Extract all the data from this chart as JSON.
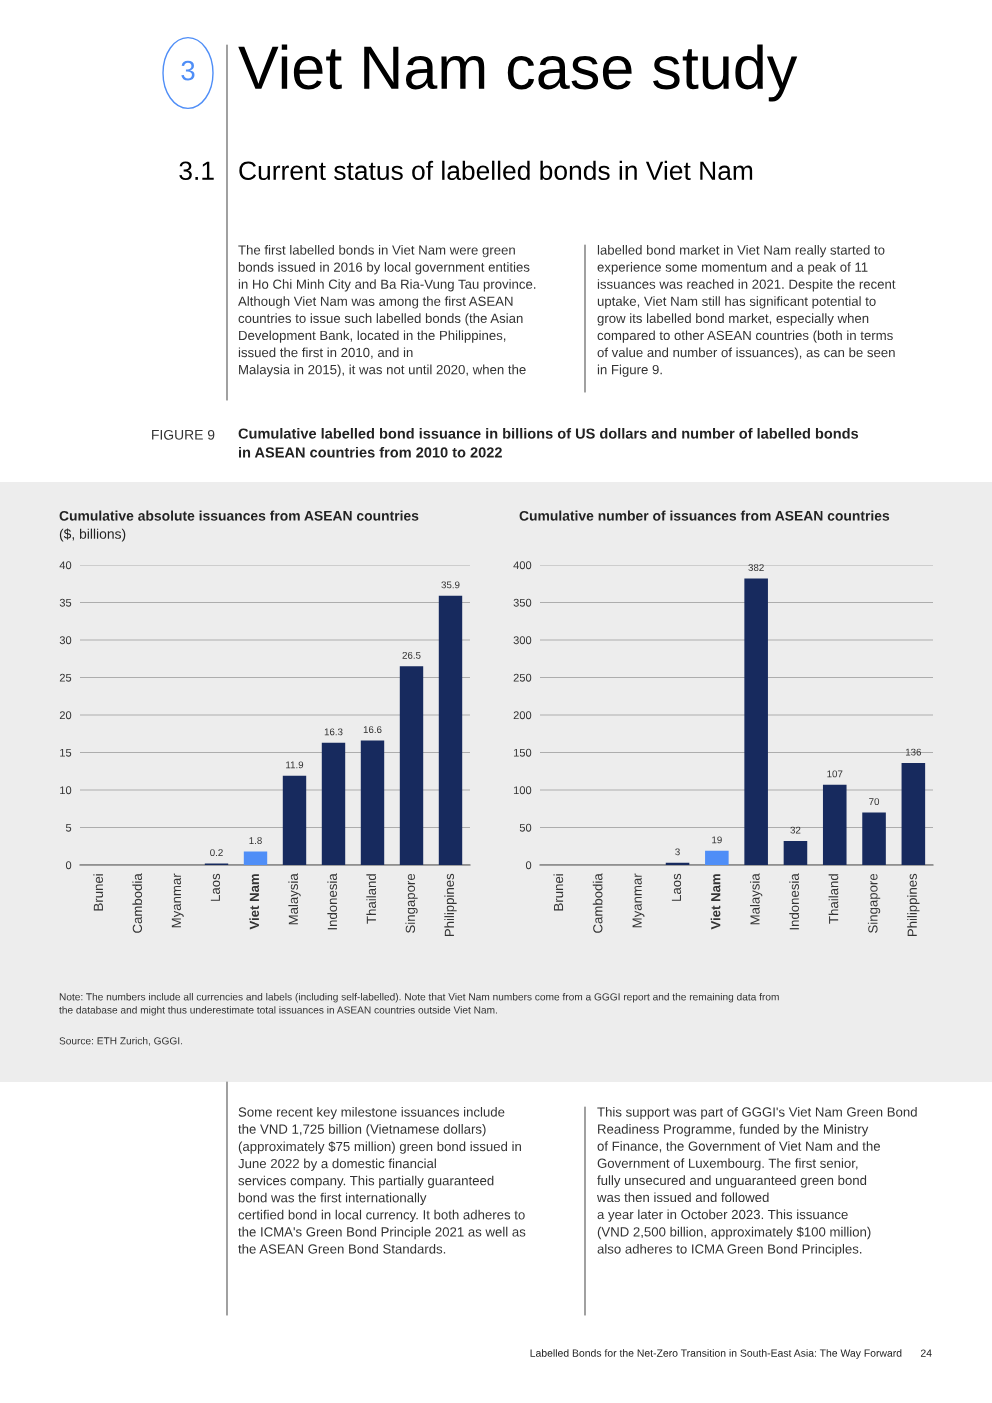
{
  "chart_data": [
    {
      "type": "other",
      "annotations": [
        "3",
        "Viet Nam case study",
        "3.1",
        "Current status of labelled bonds in Viet Nam",
        "The first labelled bonds in Viet Nam were green\nbonds issued in 2016 by local government entities\nin Ho Chi Minh City and Ba Ria-Vung Tau province.\nAlthough Viet Nam was among the first ASEAN\ncountries to issue such labelled bonds (the Asian\nDevelopment Bank, located in the Philippines,\nissued the first in 2010, and in\nMalaysia in 2015), it was not until 2020, when the",
        "labelled bond market in Viet Nam really started to\nexperience some momentum and a peak of 11\nissuances was reached in 2021. Despite the recent\nuptake, Viet Nam still has significant potential to\ngrow its labelled bond market, especially when\ncompared to other ASEAN countries (both in terms\nof value and number of issuances), as can be seen\nin Figure 9.",
        "FIGURE 9",
        "Cumulative labelled bond issuance in billions of US dollars and number of labelled bonds\nin ASEAN countries from 2010 to 2022",
        "Note: The numbers include all currencies and labels (including self-labelled). Note that Viet Nam numbers come from a GGGI report and the remaining data from\nthe database and might thus underestimate total issuances in ASEAN countries outside Viet Nam.",
        "Source: ETH Zurich, GGGI.",
        "Some recent key milestone issuances include\nthe VND 1,725 billion (Vietnamese dollars)\n(approximately $75 million) green bond issued in\nJune 2022 by a domestic financial\nservices company. This partially guaranteed\nbond was the first internationally\ncertified bond in local currency. It both adheres to\nthe ICMA's Green Bond Principle 2021 as well as\nthe ASEAN Green Bond Standards.",
        "This support was part of GGGI's Viet Nam Green Bond\nReadiness Programme, funded by the Ministry\nof Finance, the Government of Viet Nam and the\nGovernment of Luxembourg. The first senior,\nfully unsecured and unguaranteed green bond\nwas then issued and followed\na year later in October 2023. This issuance\n(VND 2,500 billion, approximately $100 million)\nalso adheres to ICMA Green Bond Principles.",
        "Labelled Bonds for the Net-Zero Transition in South-East Asia: The Way Forward",
        "24"
      ]
    },
    {
      "type": "bar",
      "title": "Cumulative absolute issuances from ASEAN countries",
      "subtitle": "($, billions)",
      "categories": [
        "Brunei",
        "Cambodia",
        "Myanmar",
        "Laos",
        "Viet Nam",
        "Malaysia",
        "Indonesia",
        "Thailand",
        "Singapore",
        "Philippines"
      ],
      "values": [
        0,
        0,
        0,
        0.2,
        1.8,
        11.9,
        16.3,
        16.6,
        26.5,
        35.9
      ],
      "value_labels": [
        null,
        null,
        null,
        "0.2",
        "1.8",
        "11.9",
        "16.3",
        "16.6",
        "26.5",
        "35.9"
      ],
      "colors": [
        "#172a5e",
        "#172a5e",
        "#172a5e",
        "#172a5e",
        "#4f8ef7",
        "#172a5e",
        "#172a5e",
        "#172a5e",
        "#172a5e",
        "#172a5e"
      ],
      "ylim": [
        0,
        40
      ],
      "yticks": [
        0,
        5,
        10,
        15,
        20,
        25,
        30,
        35,
        40
      ],
      "grid": "y"
    },
    {
      "type": "bar",
      "title": "Cumulative number of issuances from ASEAN countries",
      "categories": [
        "Brunei",
        "Cambodia",
        "Myanmar",
        "Laos",
        "Viet Nam",
        "Malaysia",
        "Indonesia",
        "Thailand",
        "Singapore",
        "Philippines"
      ],
      "values": [
        0,
        0,
        0,
        3,
        19,
        382,
        32,
        107,
        70,
        136
      ],
      "value_labels": [
        null,
        null,
        null,
        "3",
        "19",
        "382",
        "32",
        "107",
        "70",
        "136"
      ],
      "colors": [
        "#172a5e",
        "#172a5e",
        "#172a5e",
        "#172a5e",
        "#4f8ef7",
        "#172a5e",
        "#172a5e",
        "#172a5e",
        "#172a5e",
        "#172a5e"
      ],
      "ylim": [
        0,
        400
      ],
      "yticks": [
        0,
        50,
        100,
        150,
        200,
        250,
        300,
        350,
        400
      ],
      "grid": "y"
    }
  ]
}
